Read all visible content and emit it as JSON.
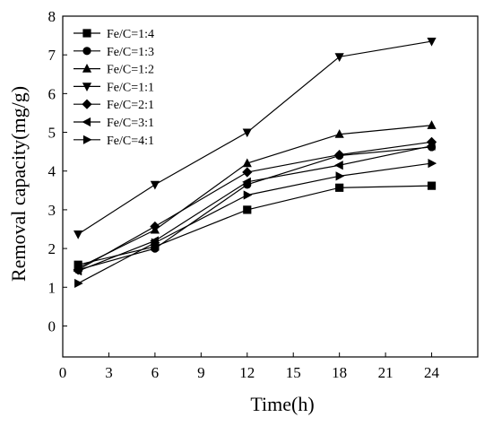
{
  "chart_data": {
    "type": "line",
    "xlabel": "Time(h)",
    "ylabel": "Removal capacity(mg/g)",
    "xlim": [
      0,
      27
    ],
    "ylim": [
      -0.8,
      8
    ],
    "xticks": [
      0,
      3,
      6,
      9,
      12,
      15,
      18,
      21,
      24
    ],
    "yticks": [
      0,
      1,
      2,
      3,
      4,
      5,
      6,
      7,
      8
    ],
    "legend_position": "top-left",
    "x": [
      1,
      6,
      12,
      18,
      24
    ],
    "series": [
      {
        "name": "Fe/C=1:4",
        "marker": "square",
        "values": [
          1.58,
          2.05,
          3.0,
          3.57,
          3.62
        ]
      },
      {
        "name": "Fe/C=1:3",
        "marker": "circle",
        "values": [
          1.45,
          2.0,
          3.65,
          4.4,
          4.62
        ]
      },
      {
        "name": "Fe/C=1:2",
        "marker": "triangle-up",
        "values": [
          1.5,
          2.48,
          4.2,
          4.95,
          5.18
        ]
      },
      {
        "name": "Fe/C=1:1",
        "marker": "triangle-down",
        "values": [
          2.37,
          3.65,
          5.0,
          6.95,
          7.35
        ]
      },
      {
        "name": "Fe/C=2:1",
        "marker": "diamond",
        "values": [
          1.45,
          2.57,
          3.97,
          4.42,
          4.75
        ]
      },
      {
        "name": "Fe/C=3:1",
        "marker": "triangle-left",
        "values": [
          1.42,
          2.2,
          3.72,
          4.15,
          4.65
        ]
      },
      {
        "name": "Fe/C=4:1",
        "marker": "triangle-right",
        "values": [
          1.1,
          2.15,
          3.38,
          3.87,
          4.2
        ]
      }
    ]
  }
}
